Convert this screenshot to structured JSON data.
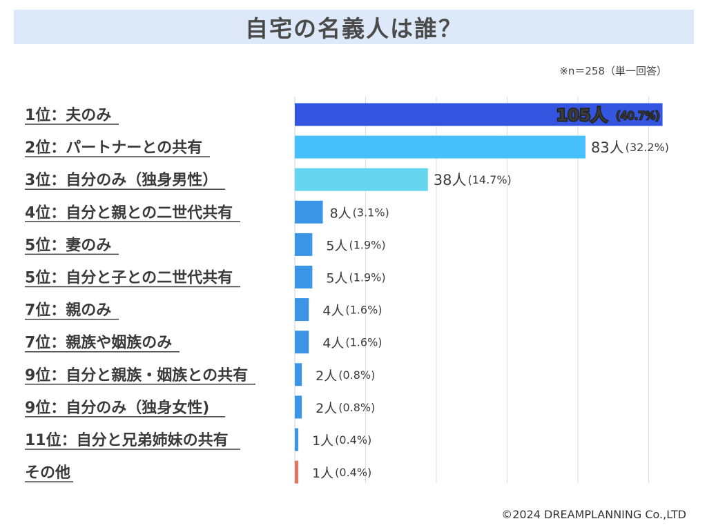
{
  "title": "自宅の名義人は誰？",
  "sample_note": "※n＝258（単一回答）",
  "copyright": "©2024 DREAMPLANNING Co.,LTD",
  "chart_data": {
    "type": "bar",
    "orientation": "horizontal",
    "title": "自宅の名義人は誰？",
    "xlim": [
      0,
      111
    ],
    "grid": true,
    "categories": [
      "1位：夫のみ",
      "2位：パートナーとの共有",
      "3位：自分のみ（独身男性）",
      "4位：自分と親との二世代共有",
      "5位：妻のみ",
      "5位：自分と子との二世代共有",
      "7位：親のみ",
      "7位：親族や姻族のみ",
      "9位：自分と親族・姻族との共有",
      "9位：自分のみ（独身女性)",
      "11位：自分と兄弟姉妹の共有",
      "その他"
    ],
    "values": [
      105,
      83,
      38,
      8,
      5,
      5,
      4,
      4,
      2,
      2,
      1,
      1
    ],
    "value_labels": [
      "105人",
      "83人",
      "38人",
      "8人",
      "5人",
      "5人",
      "4人",
      "4人",
      "2人",
      "2人",
      "1人",
      "1人"
    ],
    "percent_labels": [
      "(40.7%)",
      "(32.2%)",
      "(14.7%)",
      "(3.1%)",
      "(1.9%)",
      "(1.9%)",
      "(1.6%)",
      "(1.6%)",
      "(0.8%)",
      "(0.8%)",
      "(0.4%)",
      "(0.4%)"
    ],
    "colors": [
      "#3355e0",
      "#46c0fa",
      "#66d6f0",
      "#3a95e6",
      "#3a95e6",
      "#3a95e6",
      "#3a95e6",
      "#3a95e6",
      "#3a95e6",
      "#3a95e6",
      "#3a95e6",
      "#e07560"
    ]
  }
}
